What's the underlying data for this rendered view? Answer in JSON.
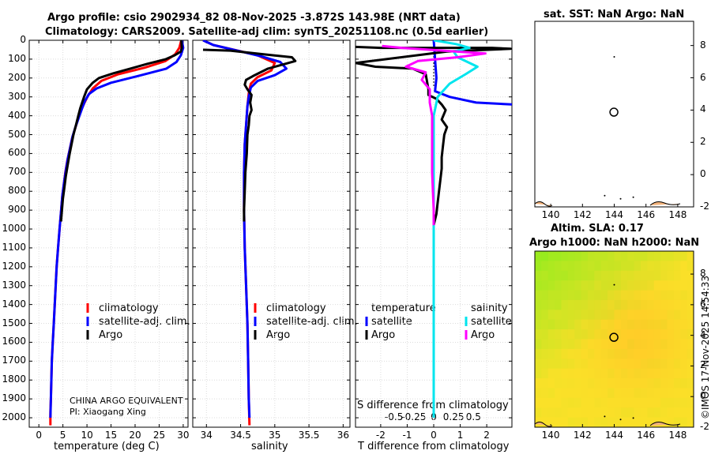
{
  "figure": {
    "title_line1": "Argo profile: csio 2902934_82 08-Nov-2025 -3.872S 143.98E (NRT data)",
    "title_line2": "Climatology: CARS2009. Satellite-adj clim: synTS_20251108.nc (0.5d earlier)",
    "credit": "©IMOS 17-Nov-2025 14:54:33",
    "institution": "CHINA ARGO EQUIVALENT",
    "pi": "PI: Xiaogang Xing"
  },
  "depth_axis": {
    "ticks": [
      "0",
      "100",
      "200",
      "300",
      "400",
      "500",
      "600",
      "700",
      "800",
      "900",
      "1000",
      "1100",
      "1200",
      "1300",
      "1400",
      "1500",
      "1600",
      "1700",
      "1800",
      "1900",
      "2000"
    ]
  },
  "legend_common": {
    "climatology": "climatology",
    "satellite_adj": "satellite-adj. clim.",
    "argo": "Argo"
  },
  "legend_diff": {
    "temperature": "temperature",
    "salinity": "salinity",
    "satellite": "satellite",
    "argo": "Argo"
  },
  "colors": {
    "climatology": "#ff0000",
    "satellite_adj": "#0000ff",
    "argo": "#000000",
    "t_satellite": "#0000ff",
    "s_satellite": "#00e5ee",
    "s_argo": "#ff00ff"
  },
  "chart_data": [
    {
      "type": "line",
      "name": "temperature",
      "xlabel": "temperature (deg C)",
      "ylabel": "depth",
      "xlim": [
        -2,
        31
      ],
      "ylim": [
        0,
        2050
      ],
      "xticks": [
        "0",
        "5",
        "10",
        "15",
        "20",
        "25",
        "30"
      ],
      "series": [
        {
          "name": "climatology",
          "points": [
            [
              29.6,
              0
            ],
            [
              29.2,
              40
            ],
            [
              28.3,
              75
            ],
            [
              26.3,
              110
            ],
            [
              22,
              145
            ],
            [
              16.5,
              180
            ],
            [
              13,
              215
            ],
            [
              11.2,
              255
            ],
            [
              10.2,
              295
            ],
            [
              9.5,
              330
            ],
            [
              8.8,
              370
            ],
            [
              8.1,
              420
            ],
            [
              7.5,
              470
            ],
            [
              6.9,
              520
            ],
            [
              6.4,
              580
            ],
            [
              5.9,
              640
            ],
            [
              5.5,
              700
            ],
            [
              5.2,
              760
            ],
            [
              4.9,
              820
            ],
            [
              4.7,
              880
            ],
            [
              4.5,
              940
            ],
            [
              4.3,
              1000
            ],
            [
              4.0,
              1100
            ],
            [
              3.7,
              1200
            ],
            [
              3.5,
              1300
            ],
            [
              3.3,
              1400
            ],
            [
              3.1,
              1500
            ],
            [
              2.9,
              1600
            ],
            [
              2.7,
              1700
            ],
            [
              2.6,
              1800
            ],
            [
              2.5,
              1900
            ],
            [
              2.4,
              1970
            ],
            [
              2.4,
              2040
            ]
          ]
        },
        {
          "name": "satellite-adj. clim.",
          "points": [
            [
              29.7,
              0
            ],
            [
              30.0,
              40
            ],
            [
              29.5,
              80
            ],
            [
              28.6,
              115
            ],
            [
              26.5,
              150
            ],
            [
              20.5,
              190
            ],
            [
              15,
              225
            ],
            [
              12,
              255
            ],
            [
              10.4,
              285
            ],
            [
              9.6,
              320
            ],
            [
              9.0,
              360
            ],
            [
              8.3,
              410
            ],
            [
              7.6,
              460
            ],
            [
              7.0,
              510
            ],
            [
              6.5,
              570
            ],
            [
              6.0,
              630
            ],
            [
              5.6,
              690
            ],
            [
              5.2,
              760
            ],
            [
              4.9,
              820
            ],
            [
              4.7,
              880
            ],
            [
              4.5,
              940
            ],
            [
              4.3,
              1000
            ],
            [
              4.0,
              1100
            ],
            [
              3.7,
              1200
            ],
            [
              3.5,
              1300
            ],
            [
              3.3,
              1400
            ],
            [
              3.1,
              1500
            ],
            [
              2.9,
              1600
            ],
            [
              2.7,
              1700
            ],
            [
              2.6,
              1800
            ],
            [
              2.5,
              1900
            ],
            [
              2.4,
              2000
            ]
          ]
        },
        {
          "name": "Argo",
          "points": [
            [
              29.6,
              0
            ],
            [
              29.7,
              40
            ],
            [
              29.5,
              60
            ],
            [
              28.2,
              80
            ],
            [
              26.4,
              100
            ],
            [
              22.5,
              125
            ],
            [
              19.0,
              150
            ],
            [
              15.5,
              175
            ],
            [
              12.5,
              200
            ],
            [
              11.2,
              225
            ],
            [
              10.0,
              260
            ],
            [
              9.4,
              300
            ],
            [
              9.0,
              330
            ],
            [
              8.6,
              360
            ],
            [
              8.2,
              400
            ],
            [
              7.7,
              450
            ],
            [
              7.2,
              500
            ],
            [
              6.8,
              550
            ],
            [
              6.4,
              600
            ],
            [
              6.0,
              660
            ],
            [
              5.6,
              720
            ],
            [
              5.3,
              780
            ],
            [
              5.0,
              840
            ],
            [
              4.8,
              900
            ],
            [
              4.6,
              960
            ]
          ]
        }
      ]
    },
    {
      "type": "line",
      "name": "salinity",
      "xlabel": "salinity",
      "ylabel": "depth",
      "xlim": [
        33.8,
        36.1
      ],
      "ylim": [
        0,
        2050
      ],
      "xticks": [
        "34",
        "34.5",
        "35",
        "35.5",
        "36"
      ],
      "series": [
        {
          "name": "climatology",
          "points": [
            [
              33.95,
              0
            ],
            [
              34.1,
              25
            ],
            [
              34.4,
              50
            ],
            [
              34.75,
              80
            ],
            [
              35.0,
              120
            ],
            [
              34.95,
              160
            ],
            [
              34.75,
              195
            ],
            [
              34.65,
              230
            ],
            [
              34.62,
              280
            ],
            [
              34.6,
              350
            ],
            [
              34.58,
              450
            ],
            [
              34.56,
              550
            ],
            [
              34.55,
              700
            ],
            [
              34.55,
              900
            ],
            [
              34.56,
              1100
            ],
            [
              34.58,
              1300
            ],
            [
              34.6,
              1500
            ],
            [
              34.61,
              1700
            ],
            [
              34.62,
              1900
            ],
            [
              34.63,
              2040
            ]
          ]
        },
        {
          "name": "satellite-adj. clim.",
          "points": [
            [
              33.95,
              0
            ],
            [
              34.1,
              25
            ],
            [
              34.45,
              55
            ],
            [
              34.8,
              85
            ],
            [
              35.08,
              115
            ],
            [
              35.17,
              150
            ],
            [
              35.0,
              185
            ],
            [
              34.75,
              215
            ],
            [
              34.65,
              250
            ],
            [
              34.62,
              300
            ],
            [
              34.6,
              350
            ],
            [
              34.58,
              450
            ],
            [
              34.56,
              550
            ],
            [
              34.55,
              700
            ],
            [
              34.55,
              900
            ],
            [
              34.56,
              1100
            ],
            [
              34.58,
              1300
            ],
            [
              34.6,
              1500
            ],
            [
              34.61,
              1700
            ],
            [
              34.62,
              1900
            ],
            [
              34.63,
              2000
            ]
          ]
        },
        {
          "name": "Argo",
          "points": [
            [
              33.95,
              50
            ],
            [
              34.35,
              55
            ],
            [
              34.85,
              75
            ],
            [
              35.25,
              90
            ],
            [
              35.3,
              110
            ],
            [
              34.9,
              150
            ],
            [
              34.68,
              190
            ],
            [
              34.58,
              210
            ],
            [
              34.56,
              235
            ],
            [
              34.6,
              260
            ],
            [
              34.66,
              290
            ],
            [
              34.64,
              330
            ],
            [
              34.66,
              370
            ],
            [
              34.63,
              400
            ],
            [
              34.62,
              450
            ],
            [
              34.6,
              500
            ],
            [
              34.59,
              600
            ],
            [
              34.57,
              700
            ],
            [
              34.56,
              800
            ],
            [
              34.55,
              900
            ],
            [
              34.55,
              960
            ]
          ]
        }
      ]
    },
    {
      "type": "line",
      "name": "difference from climatology",
      "xlabel": "T difference from climatology",
      "xlabel_top": "S difference from climatology",
      "ylabel": "depth",
      "xlim": [
        -2.95,
        2.95
      ],
      "ylim": [
        0,
        2050
      ],
      "xticks": [
        "-2",
        "-1",
        "0",
        "1",
        "2"
      ],
      "s_xticks": [
        "-0.5",
        "-0.25",
        "0",
        "0.25",
        "0.5"
      ],
      "series": [
        {
          "name": "temperature satellite",
          "points": [
            [
              0,
              0
            ],
            [
              0.05,
              100
            ],
            [
              0.1,
              200
            ],
            [
              0.05,
              270
            ],
            [
              0.6,
              300
            ],
            [
              1.6,
              330
            ],
            [
              2.95,
              340
            ]
          ]
        },
        {
          "name": "temperature Argo",
          "points": [
            [
              -2.95,
              35
            ],
            [
              -2.0,
              40
            ],
            [
              2.2,
              40
            ],
            [
              2.9,
              45
            ],
            [
              0.5,
              60
            ],
            [
              -2.95,
              120
            ],
            [
              -2.2,
              140
            ],
            [
              -0.8,
              150
            ],
            [
              -0.3,
              180
            ],
            [
              -0.2,
              260
            ],
            [
              -0.2,
              290
            ],
            [
              0.1,
              310
            ],
            [
              0.3,
              340
            ],
            [
              0.45,
              370
            ],
            [
              0.3,
              420
            ],
            [
              0.5,
              460
            ],
            [
              0.4,
              500
            ],
            [
              0.35,
              560
            ],
            [
              0.3,
              620
            ],
            [
              0.3,
              680
            ],
            [
              0.25,
              740
            ],
            [
              0.2,
              800
            ],
            [
              0.15,
              860
            ],
            [
              0.1,
              920
            ],
            [
              0.0,
              980
            ]
          ]
        },
        {
          "name": "salinity satellite",
          "points": [
            [
              0,
              0
            ],
            [
              0.28,
              20
            ],
            [
              0.45,
              40
            ],
            [
              0.25,
              60
            ],
            [
              0.3,
              90
            ],
            [
              0.55,
              140
            ],
            [
              0.4,
              180
            ],
            [
              0.2,
              230
            ],
            [
              0.05,
              300
            ],
            [
              0.0,
              400
            ],
            [
              0.0,
              600
            ],
            [
              0.0,
              800
            ],
            [
              0.0,
              1000
            ],
            [
              0.0,
              1200
            ],
            [
              0.0,
              1400
            ],
            [
              0.0,
              1600
            ],
            [
              0.0,
              1800
            ],
            [
              0.0,
              2000
            ]
          ]
        },
        {
          "name": "salinity Argo",
          "points": [
            [
              -0.65,
              30
            ],
            [
              -0.4,
              40
            ],
            [
              0.65,
              70
            ],
            [
              0.3,
              90
            ],
            [
              -0.2,
              110
            ],
            [
              -0.35,
              140
            ],
            [
              -0.1,
              170
            ],
            [
              -0.15,
              210
            ],
            [
              -0.05,
              260
            ],
            [
              -0.05,
              330
            ],
            [
              -0.02,
              400
            ],
            [
              -0.02,
              500
            ],
            [
              -0.02,
              600
            ],
            [
              -0.02,
              700
            ],
            [
              -0.01,
              800
            ],
            [
              0.0,
              900
            ],
            [
              0.0,
              980
            ]
          ]
        }
      ]
    },
    {
      "type": "heatmap",
      "name": "sat. SST map",
      "title": "sat. SST: NaN Argo: NaN",
      "xlim": [
        139,
        149
      ],
      "ylim": [
        -2,
        9.5
      ],
      "xticks": [
        "140",
        "142",
        "144",
        "146",
        "148"
      ],
      "yticks": [
        "-2",
        "0",
        "2",
        "4",
        "6",
        "8"
      ],
      "marker": {
        "lon": 143.98,
        "lat": 3.87
      }
    },
    {
      "type": "heatmap",
      "name": "Altim. SLA map",
      "title_line1": "Altim. SLA: 0.17",
      "title_line2": "Argo h1000: NaN h2000: NaN",
      "xlim": [
        139,
        149
      ],
      "ylim": [
        -2,
        9.5
      ],
      "xticks": [
        "140",
        "142",
        "144",
        "146",
        "148"
      ],
      "yticks": [
        "-2",
        "0",
        "2",
        "4",
        "6",
        "8"
      ],
      "marker": {
        "lon": 143.98,
        "lat": 3.87
      }
    }
  ]
}
